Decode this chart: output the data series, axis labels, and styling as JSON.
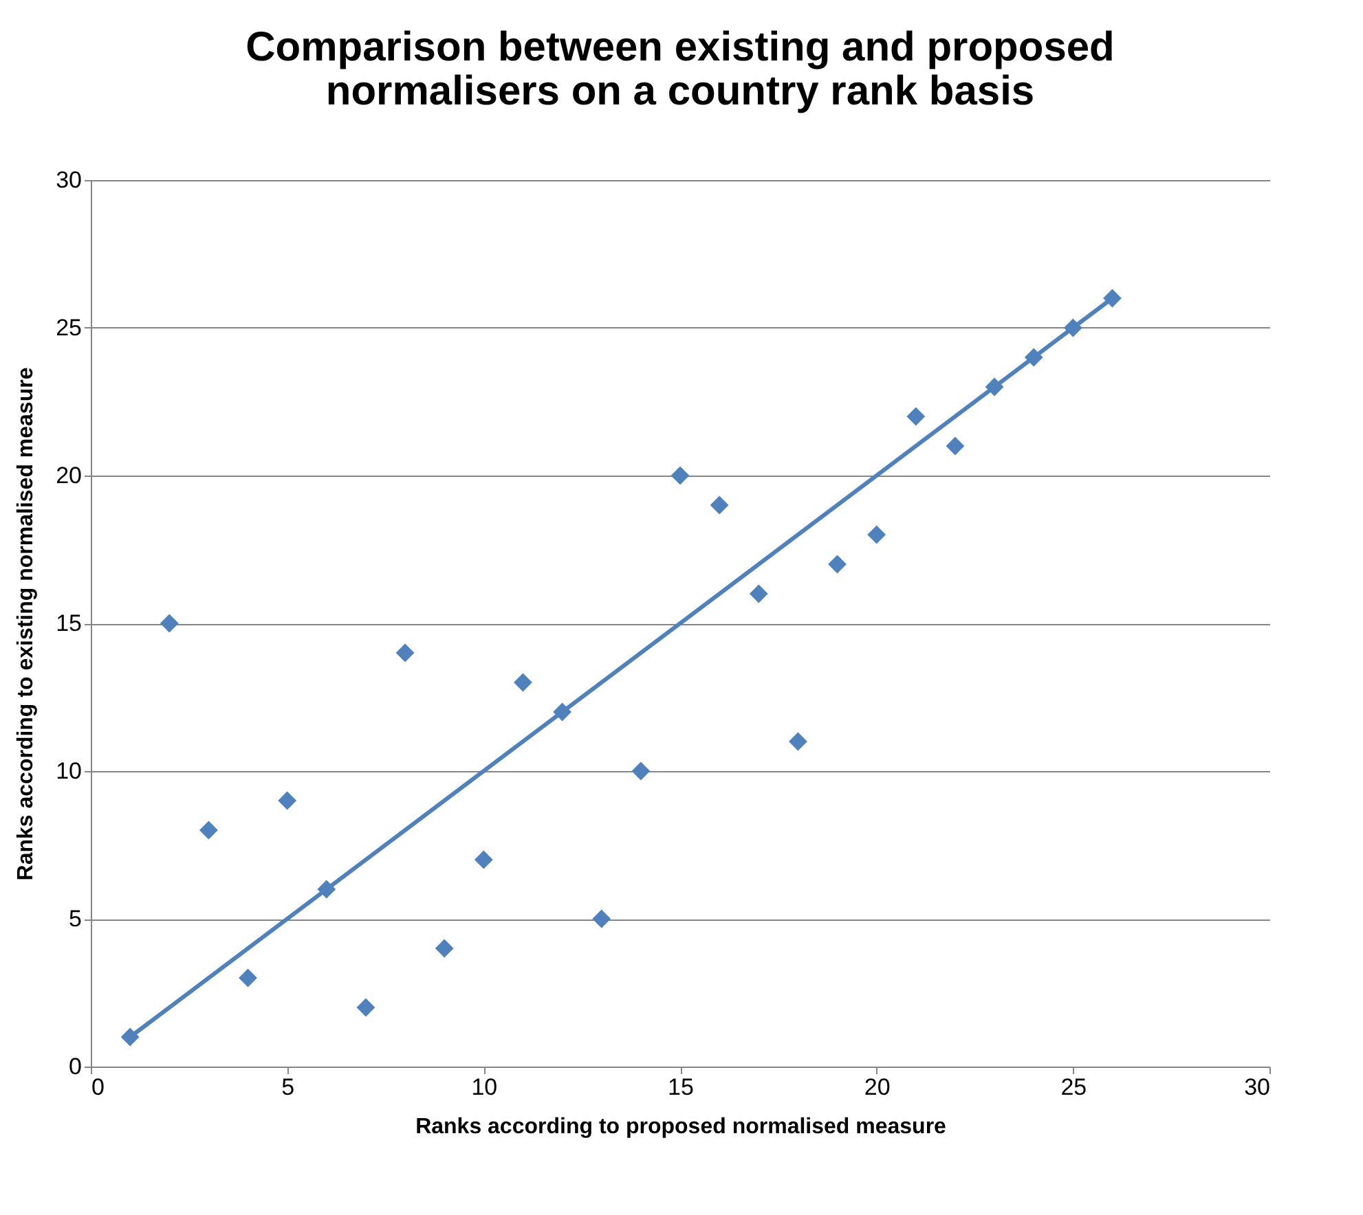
{
  "chart_data": {
    "type": "scatter",
    "title": "Comparison between existing and proposed normalisers on a country rank basis",
    "xlabel": "Ranks according to proposed normalised measure",
    "ylabel": "Ranks according to existing normalised measure",
    "x": [
      1,
      2,
      3,
      4,
      5,
      6,
      7,
      8,
      9,
      10,
      11,
      12,
      13,
      14,
      15,
      16,
      17,
      18,
      19,
      20,
      21,
      22,
      23,
      24,
      25,
      26
    ],
    "series": [
      {
        "color": "#4f81bd",
        "marker": "diamond",
        "values": [
          1,
          15,
          8,
          3,
          9,
          6,
          2,
          14,
          4,
          7,
          13,
          12,
          5,
          10,
          20,
          19,
          16,
          11,
          17,
          18,
          22,
          21,
          23,
          24,
          25,
          26
        ]
      },
      {
        "type": "line",
        "color": "#4f81bd",
        "x": [
          1,
          26
        ],
        "values": [
          1,
          26
        ]
      }
    ],
    "xlim": [
      0,
      30
    ],
    "xticks": [
      0,
      5,
      10,
      15,
      20,
      25,
      30
    ],
    "ylim": [
      0,
      30
    ],
    "yticks": [
      0,
      5,
      10,
      15,
      20,
      25,
      30
    ],
    "grid": "y"
  }
}
